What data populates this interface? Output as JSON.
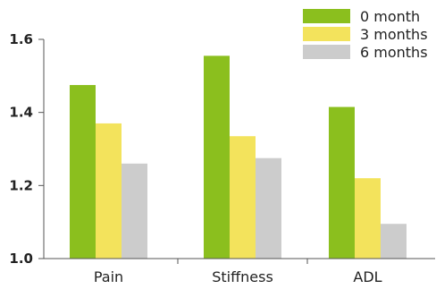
{
  "chart_data": {
    "type": "bar",
    "categories": [
      "Pain",
      "Stiffness",
      "ADL"
    ],
    "series": [
      {
        "name": "0 month",
        "values": [
          1.475,
          1.555,
          1.415
        ],
        "color": "#8bbf1e"
      },
      {
        "name": "3 months",
        "values": [
          1.37,
          1.335,
          1.22
        ],
        "color": "#f3e35c"
      },
      {
        "name": "6 months",
        "values": [
          1.26,
          1.275,
          1.095
        ],
        "color": "#cccccc"
      }
    ],
    "title": "",
    "xlabel": "",
    "ylabel": "",
    "ylim": [
      1.0,
      1.6
    ],
    "yticks": [
      "1.0",
      "1.2",
      "1.4",
      "1.6"
    ],
    "grid": false,
    "legend_position": "top-right"
  }
}
